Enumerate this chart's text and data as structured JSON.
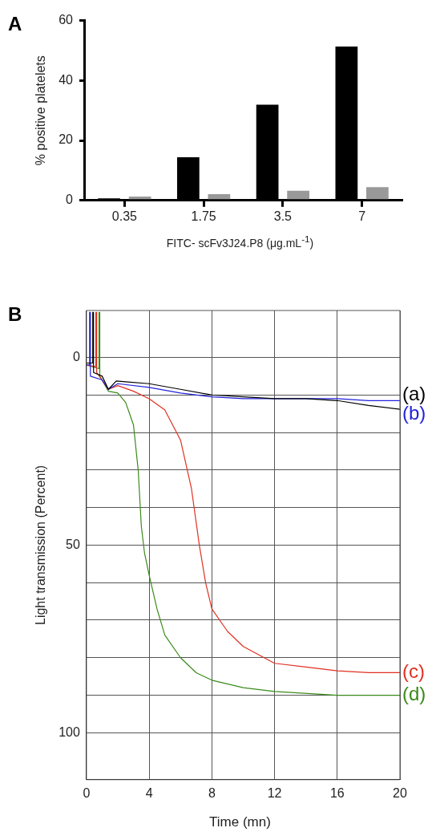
{
  "chart_data": [
    {
      "type": "bar",
      "annotations": [
        "A"
      ],
      "categories": [
        "0.35",
        "1.75",
        "3.5",
        "7"
      ],
      "xlabel": "FITC- scFv3J24.P8  (μg.mL$^{-1}$)",
      "ylabel": "% positive platelets",
      "ylim": [
        0,
        60
      ],
      "yticks": [
        0,
        20,
        40,
        60
      ],
      "grid": false,
      "series": [
        {
          "color": "#000000",
          "values": [
            0.7,
            14.4,
            31.9,
            51.3
          ]
        },
        {
          "color": "#999999",
          "values": [
            1.3,
            2.1,
            3.2,
            4.4
          ]
        }
      ]
    },
    {
      "type": "line",
      "annotations": [
        "B"
      ],
      "xlabel": "Time (mn)",
      "ylabel": "Light transmission (Percent)",
      "xlim": [
        0,
        20
      ],
      "xticks": [
        0,
        4,
        8,
        12,
        16,
        20
      ],
      "ylim": [
        112.5,
        -12.5
      ],
      "yticks": [
        0,
        {
          "value": 10,
          "label": null
        },
        {
          "value": 20,
          "label": null
        },
        {
          "value": 30,
          "label": null
        },
        {
          "value": 40,
          "label": null
        },
        50,
        {
          "value": 60,
          "label": null
        },
        {
          "value": 70,
          "label": null
        },
        {
          "value": 80,
          "label": null
        },
        {
          "value": 90,
          "label": null
        },
        100
      ],
      "grid": true,
      "marker": "none",
      "line_style": "solid",
      "series": [
        {
          "name": "(a)",
          "color": "#000000",
          "x": [
            0,
            0.4,
            0.4,
            0.45,
            0.45,
            1,
            1.4,
            1.9,
            2.5,
            4,
            6,
            8,
            10,
            12,
            14,
            16,
            18,
            20
          ],
          "values": [
            1.5,
            1.5,
            -12,
            -12,
            4,
            5,
            8.5,
            6.3,
            6.5,
            7,
            8.5,
            10,
            10.5,
            11,
            11,
            11.5,
            12.8,
            13.8
          ]
        },
        {
          "name": "(b)",
          "color": "#2222dd",
          "x": [
            0,
            0.2,
            0.2,
            0.25,
            0.25,
            1,
            1.4,
            2,
            4,
            6,
            8,
            10,
            12,
            14,
            16,
            18,
            20
          ],
          "values": [
            2,
            2,
            -12,
            -12,
            5,
            6,
            8.5,
            7,
            8,
            9.5,
            10.5,
            11,
            11,
            11,
            11,
            11.5,
            11.5
          ]
        },
        {
          "name": "(c)",
          "color": "#e03020",
          "x": [
            0,
            0.6,
            0.6,
            0.65,
            0.65,
            1.4,
            2,
            3,
            4,
            5,
            6,
            6.7,
            7.2,
            7.6,
            8,
            9,
            10,
            12,
            14,
            16,
            18,
            20
          ],
          "values": [
            2,
            2.5,
            -12,
            -12,
            4,
            8.5,
            7.5,
            9,
            11,
            14,
            22,
            35,
            50,
            60,
            67,
            73,
            77,
            81.5,
            82.5,
            83.5,
            84,
            84
          ]
        },
        {
          "name": "(d)",
          "color": "#3a8a1a",
          "x": [
            0,
            0.8,
            0.8,
            0.85,
            0.85,
            1.4,
            2,
            2.5,
            3,
            3.3,
            3.5,
            3.7,
            4,
            4.5,
            5,
            6,
            7,
            8,
            10,
            12,
            16,
            20
          ],
          "values": [
            2,
            3,
            -12,
            -12,
            5,
            9,
            9.5,
            12,
            18,
            30,
            45,
            52,
            58,
            67,
            74,
            80,
            84,
            86,
            88,
            89,
            90,
            90
          ]
        }
      ]
    }
  ]
}
